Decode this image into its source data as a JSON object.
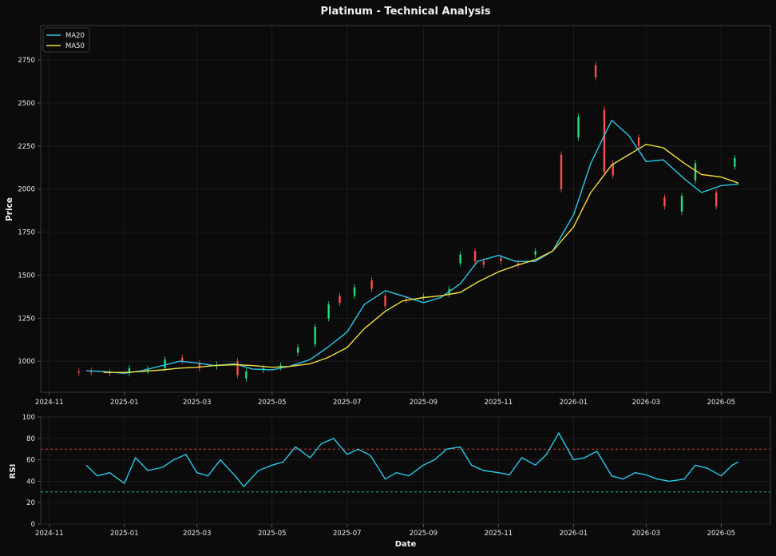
{
  "colors": {
    "background": "#0b0b0b",
    "grid": "#1e1e1e",
    "axis": "#555555",
    "text": "#e6e6e6",
    "up": "#22e07a",
    "down": "#ff4d4d",
    "ma20": "#28c8e8",
    "ma50": "#f0e040",
    "rsi": "#28c8e8",
    "overbought": "#d03a3a",
    "oversold": "#20c080"
  },
  "chart_data": [
    {
      "type": "candlestick",
      "title": "Platinum - Technical Analysis",
      "ylabel": "Price",
      "xlim": [
        "2024-10-25",
        "2026-06-10"
      ],
      "ylim": [
        820,
        2950
      ],
      "yticks": [
        1000,
        1250,
        1500,
        1750,
        2000,
        2250,
        2500,
        2750
      ],
      "xticks": [
        "2024-11",
        "2025-01",
        "2025-03",
        "2025-05",
        "2025-07",
        "2025-09",
        "2025-11",
        "2026-01",
        "2026-03",
        "2026-05"
      ],
      "grid": true,
      "legend_position": "top-left",
      "series": [
        {
          "name": "MA20",
          "x": [
            "2024-12-01",
            "2024-12-15",
            "2025-01-01",
            "2025-01-15",
            "2025-02-01",
            "2025-02-15",
            "2025-03-01",
            "2025-03-15",
            "2025-04-01",
            "2025-04-15",
            "2025-05-01",
            "2025-05-15",
            "2025-06-01",
            "2025-06-15",
            "2025-07-01",
            "2025-07-15",
            "2025-08-01",
            "2025-08-15",
            "2025-09-01",
            "2025-09-15",
            "2025-10-01",
            "2025-10-15",
            "2025-11-01",
            "2025-11-15",
            "2025-12-01",
            "2025-12-15",
            "2026-01-01",
            "2026-01-15",
            "2026-02-01",
            "2026-02-15",
            "2026-03-01",
            "2026-03-15",
            "2026-04-01",
            "2026-04-15",
            "2026-05-01",
            "2026-05-15"
          ],
          "values": [
            945,
            940,
            930,
            945,
            975,
            1000,
            990,
            975,
            985,
            955,
            950,
            970,
            1010,
            1080,
            1170,
            1330,
            1410,
            1380,
            1340,
            1370,
            1450,
            1580,
            1615,
            1580,
            1580,
            1640,
            1850,
            2150,
            2400,
            2310,
            2160,
            2170,
            2060,
            1980,
            2020,
            2030
          ]
        },
        {
          "name": "MA50",
          "x": [
            "2024-12-15",
            "2025-01-01",
            "2025-01-15",
            "2025-02-01",
            "2025-02-15",
            "2025-03-01",
            "2025-03-15",
            "2025-04-01",
            "2025-04-15",
            "2025-05-01",
            "2025-05-15",
            "2025-06-01",
            "2025-06-15",
            "2025-07-01",
            "2025-07-15",
            "2025-08-01",
            "2025-08-15",
            "2025-09-01",
            "2025-09-15",
            "2025-10-01",
            "2025-10-15",
            "2025-11-01",
            "2025-11-15",
            "2025-12-01",
            "2025-12-15",
            "2026-01-01",
            "2026-01-15",
            "2026-02-01",
            "2026-02-15",
            "2026-03-01",
            "2026-03-15",
            "2026-04-01",
            "2026-04-15",
            "2026-05-01",
            "2026-05-15"
          ],
          "values": [
            935,
            935,
            940,
            950,
            960,
            965,
            975,
            980,
            975,
            965,
            970,
            985,
            1020,
            1080,
            1190,
            1290,
            1350,
            1370,
            1380,
            1400,
            1460,
            1520,
            1555,
            1590,
            1640,
            1780,
            1980,
            2140,
            2200,
            2260,
            2240,
            2150,
            2085,
            2070,
            2035
          ]
        }
      ],
      "candles_approx": [
        {
          "x": "2024-11-25",
          "open": 940,
          "close": 935
        },
        {
          "x": "2024-12-05",
          "open": 945,
          "close": 935
        },
        {
          "x": "2024-12-20",
          "open": 935,
          "close": 930
        },
        {
          "x": "2025-01-05",
          "open": 930,
          "close": 960
        },
        {
          "x": "2025-01-20",
          "open": 945,
          "close": 955
        },
        {
          "x": "2025-02-03",
          "open": 960,
          "close": 1010
        },
        {
          "x": "2025-02-17",
          "open": 1020,
          "close": 1000
        },
        {
          "x": "2025-03-03",
          "open": 990,
          "close": 960
        },
        {
          "x": "2025-03-17",
          "open": 970,
          "close": 980
        },
        {
          "x": "2025-04-03",
          "open": 1000,
          "close": 920
        },
        {
          "x": "2025-04-10",
          "open": 900,
          "close": 940
        },
        {
          "x": "2025-04-24",
          "open": 950,
          "close": 960
        },
        {
          "x": "2025-05-08",
          "open": 965,
          "close": 975
        },
        {
          "x": "2025-05-22",
          "open": 1050,
          "close": 1080
        },
        {
          "x": "2025-06-05",
          "open": 1100,
          "close": 1200
        },
        {
          "x": "2025-06-16",
          "open": 1250,
          "close": 1330
        },
        {
          "x": "2025-06-25",
          "open": 1380,
          "close": 1340
        },
        {
          "x": "2025-07-07",
          "open": 1380,
          "close": 1430
        },
        {
          "x": "2025-07-21",
          "open": 1470,
          "close": 1420
        },
        {
          "x": "2025-08-01",
          "open": 1380,
          "close": 1320
        },
        {
          "x": "2025-08-18",
          "open": 1360,
          "close": 1355
        },
        {
          "x": "2025-09-01",
          "open": 1370,
          "close": 1375
        },
        {
          "x": "2025-09-22",
          "open": 1390,
          "close": 1420
        },
        {
          "x": "2025-10-01",
          "open": 1570,
          "close": 1620
        },
        {
          "x": "2025-10-13",
          "open": 1640,
          "close": 1580
        },
        {
          "x": "2025-10-20",
          "open": 1580,
          "close": 1560
        },
        {
          "x": "2025-11-03",
          "open": 1600,
          "close": 1580
        },
        {
          "x": "2025-11-17",
          "open": 1570,
          "close": 1560
        },
        {
          "x": "2025-12-01",
          "open": 1620,
          "close": 1640
        },
        {
          "x": "2025-12-22",
          "open": 2200,
          "close": 2000
        },
        {
          "x": "2026-01-05",
          "open": 2300,
          "close": 2420
        },
        {
          "x": "2026-01-19",
          "open": 2720,
          "close": 2650
        },
        {
          "x": "2026-01-26",
          "open": 2460,
          "close": 2100
        },
        {
          "x": "2026-02-02",
          "open": 2150,
          "close": 2080
        },
        {
          "x": "2026-02-23",
          "open": 2300,
          "close": 2250
        },
        {
          "x": "2026-03-16",
          "open": 1950,
          "close": 1900
        },
        {
          "x": "2026-03-30",
          "open": 1870,
          "close": 1960
        },
        {
          "x": "2026-04-10",
          "open": 2050,
          "close": 2150
        },
        {
          "x": "2026-04-27",
          "open": 1980,
          "close": 1900
        },
        {
          "x": "2026-05-12",
          "open": 2130,
          "close": 2180
        }
      ]
    },
    {
      "type": "line",
      "ylabel": "RSI",
      "xlabel": "Date",
      "xlim": [
        "2024-10-25",
        "2026-06-10"
      ],
      "ylim": [
        0,
        100
      ],
      "yticks": [
        0,
        20,
        40,
        60,
        80,
        100
      ],
      "xticks": [
        "2024-11",
        "2025-01",
        "2025-03",
        "2025-05",
        "2025-07",
        "2025-09",
        "2025-11",
        "2026-01",
        "2026-03",
        "2026-05"
      ],
      "grid": true,
      "reference_lines": [
        70,
        30
      ],
      "series": [
        {
          "name": "RSI",
          "x": [
            "2024-12-01",
            "2024-12-10",
            "2024-12-20",
            "2025-01-01",
            "2025-01-10",
            "2025-01-20",
            "2025-02-01",
            "2025-02-10",
            "2025-02-20",
            "2025-03-01",
            "2025-03-10",
            "2025-03-20",
            "2025-04-01",
            "2025-04-08",
            "2025-04-20",
            "2025-05-01",
            "2025-05-10",
            "2025-05-20",
            "2025-06-01",
            "2025-06-10",
            "2025-06-20",
            "2025-07-01",
            "2025-07-10",
            "2025-07-20",
            "2025-08-01",
            "2025-08-10",
            "2025-08-20",
            "2025-09-01",
            "2025-09-10",
            "2025-09-20",
            "2025-10-01",
            "2025-10-10",
            "2025-10-20",
            "2025-11-01",
            "2025-11-10",
            "2025-11-20",
            "2025-12-01",
            "2025-12-10",
            "2025-12-20",
            "2026-01-01",
            "2026-01-10",
            "2026-01-20",
            "2026-02-01",
            "2026-02-10",
            "2026-02-20",
            "2026-03-01",
            "2026-03-10",
            "2026-03-20",
            "2026-04-01",
            "2026-04-10",
            "2026-04-20",
            "2026-05-01",
            "2026-05-10",
            "2026-05-15"
          ],
          "values": [
            55,
            45,
            48,
            38,
            62,
            50,
            53,
            60,
            65,
            48,
            45,
            60,
            45,
            35,
            50,
            55,
            58,
            72,
            62,
            75,
            80,
            65,
            70,
            64,
            42,
            48,
            45,
            55,
            60,
            70,
            72,
            55,
            50,
            48,
            46,
            62,
            55,
            65,
            85,
            60,
            62,
            68,
            45,
            42,
            48,
            46,
            42,
            40,
            42,
            55,
            52,
            45,
            55,
            58
          ]
        }
      ]
    }
  ]
}
